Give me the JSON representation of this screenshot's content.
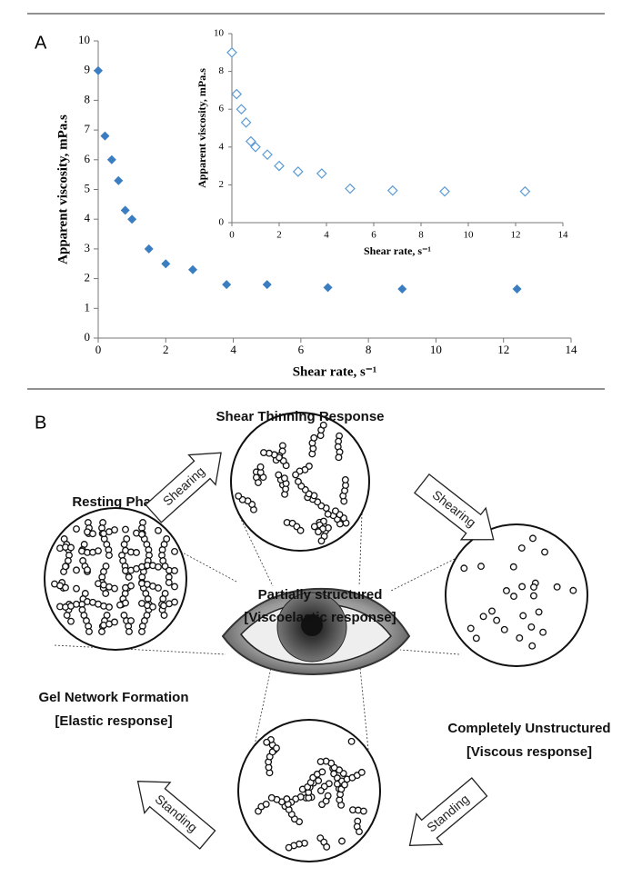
{
  "panel_labels": [
    "A",
    "B"
  ],
  "chart_data": [
    {
      "type": "scatter",
      "marker": "filled-diamond",
      "color": "#3a7dc0",
      "xlabel": "Shear rate, s⁻¹",
      "ylabel": "Apparent viscosity, mPa.s",
      "x": [
        0,
        0.2,
        0.4,
        0.6,
        0.8,
        1.0,
        1.5,
        2.0,
        2.8,
        3.8,
        5.0,
        6.8,
        9.0,
        12.4
      ],
      "values": [
        9,
        6.8,
        6.0,
        5.3,
        4.3,
        4.0,
        3.0,
        2.5,
        2.3,
        1.8,
        1.8,
        1.7,
        1.65,
        1.65
      ],
      "xlim": [
        0,
        14
      ],
      "ylim": [
        0,
        10
      ],
      "xticks": [
        0,
        2,
        4,
        6,
        8,
        10,
        12,
        14
      ],
      "yticks": [
        0,
        1,
        2,
        3,
        4,
        5,
        6,
        7,
        8,
        9,
        10
      ]
    },
    {
      "type": "scatter",
      "marker": "hollow-diamond",
      "color": "#5b9bd5",
      "xlabel": "Shear rate, s⁻¹",
      "ylabel": "Apparent viscosity, mPa.s",
      "x": [
        0,
        0.2,
        0.4,
        0.6,
        0.8,
        1.0,
        1.5,
        2.0,
        2.8,
        3.8,
        5.0,
        6.8,
        9.0,
        12.4
      ],
      "values": [
        9,
        6.8,
        6.0,
        5.3,
        4.3,
        4.0,
        3.6,
        3.0,
        2.7,
        2.6,
        1.8,
        1.7,
        1.65,
        1.65
      ],
      "xlim": [
        0,
        14
      ],
      "ylim": [
        0,
        10
      ],
      "xticks": [
        0,
        2,
        4,
        6,
        8,
        10,
        12,
        14
      ],
      "yticks": [
        0,
        2,
        4,
        6,
        8,
        10
      ]
    }
  ],
  "diagram": {
    "title": "Shear Thinning Response",
    "arrows": [
      "Shearing",
      "Shearing",
      "Standing",
      "Standing"
    ],
    "resting": "Resting Phase",
    "partial": [
      "Partially structured",
      "[Viscoelastic response]"
    ],
    "gel": [
      "Gel Network Formation",
      "[Elastic response]"
    ],
    "unstructured": [
      "Completely  Unstructured",
      "[Viscous response]"
    ]
  }
}
